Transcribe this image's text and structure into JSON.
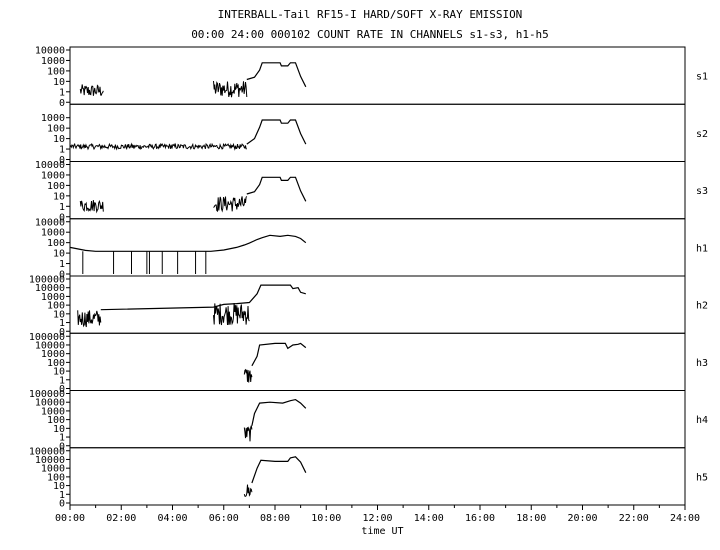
{
  "title": "INTERBALL-Tail RF15-I HARD/SOFT X-RAY EMISSION",
  "subtitle": "00:00 24:00 000102  COUNT RATE IN CHANNELS s1-s3, h1-h5",
  "chart_data": {
    "type": "line",
    "xlabel": "time UT",
    "x_unit": "hours UT",
    "xlim": [
      0,
      24
    ],
    "x_ticks": [
      "00:00",
      "02:00",
      "04:00",
      "06:00",
      "08:00",
      "10:00",
      "12:00",
      "14:00",
      "16:00",
      "18:00",
      "20:00",
      "22:00",
      "24:00"
    ],
    "grid": false,
    "y_scale": "log",
    "panels": [
      {
        "name": "s1",
        "ylim": [
          0.1,
          10000
        ],
        "y_ticks": [
          "10000",
          "1000",
          "100",
          "10",
          "1",
          "0"
        ],
        "noisy_segments": [
          [
            0.4,
            1.3,
            0.3,
            5
          ],
          [
            5.6,
            6.9,
            0.3,
            12
          ]
        ],
        "points": [
          [
            6.9,
            15
          ],
          [
            7.2,
            25
          ],
          [
            7.4,
            120
          ],
          [
            7.5,
            600
          ],
          [
            8.2,
            600
          ],
          [
            8.25,
            300
          ],
          [
            8.5,
            300
          ],
          [
            8.6,
            600
          ],
          [
            8.8,
            600
          ],
          [
            9.0,
            30
          ],
          [
            9.2,
            3
          ]
        ]
      },
      {
        "name": "s2",
        "ylim": [
          0.1,
          10000
        ],
        "y_ticks": [
          "1000",
          "100",
          "10",
          "1",
          "0"
        ],
        "noisy_segments": [
          [
            0,
            6.9,
            1,
            3
          ]
        ],
        "points": [
          [
            6.9,
            3
          ],
          [
            7.2,
            10
          ],
          [
            7.4,
            120
          ],
          [
            7.5,
            600
          ],
          [
            8.2,
            600
          ],
          [
            8.25,
            300
          ],
          [
            8.5,
            300
          ],
          [
            8.6,
            600
          ],
          [
            8.8,
            600
          ],
          [
            9.0,
            30
          ],
          [
            9.2,
            3
          ]
        ]
      },
      {
        "name": "s3",
        "ylim": [
          0.1,
          10000
        ],
        "y_ticks": [
          "10000",
          "1000",
          "100",
          "10",
          "1",
          "0"
        ],
        "noisy_segments": [
          [
            0.4,
            1.3,
            0.3,
            5
          ],
          [
            5.6,
            6.9,
            0.3,
            10
          ]
        ],
        "points": [
          [
            6.9,
            15
          ],
          [
            7.2,
            25
          ],
          [
            7.4,
            120
          ],
          [
            7.5,
            600
          ],
          [
            8.2,
            600
          ],
          [
            8.25,
            300
          ],
          [
            8.5,
            300
          ],
          [
            8.6,
            600
          ],
          [
            8.8,
            600
          ],
          [
            9.0,
            30
          ],
          [
            9.2,
            3
          ]
        ]
      },
      {
        "name": "h1",
        "ylim": [
          0.1,
          10000
        ],
        "y_ticks": [
          "10000",
          "1000",
          "100",
          "10",
          "1",
          "0"
        ],
        "drops": [
          0.5,
          1.7,
          2.4,
          3.0,
          3.1,
          3.6,
          4.2,
          4.9,
          5.3
        ],
        "points": [
          [
            0,
            35
          ],
          [
            0.3,
            25
          ],
          [
            0.6,
            18
          ],
          [
            1.0,
            15
          ],
          [
            3.0,
            15
          ],
          [
            5.5,
            15
          ],
          [
            6.0,
            20
          ],
          [
            6.5,
            35
          ],
          [
            6.8,
            60
          ],
          [
            7.0,
            90
          ],
          [
            7.3,
            200
          ],
          [
            7.5,
            300
          ],
          [
            7.8,
            500
          ],
          [
            8.2,
            400
          ],
          [
            8.5,
            500
          ],
          [
            8.8,
            400
          ],
          [
            9.0,
            250
          ],
          [
            9.2,
            100
          ]
        ]
      },
      {
        "name": "h2",
        "ylim": [
          0.1,
          100000
        ],
        "y_ticks": [
          "100000",
          "10000",
          "1000",
          "100",
          "10",
          "1",
          "0"
        ],
        "noisy_segments": [
          [
            0.3,
            1.2,
            0.3,
            30
          ],
          [
            5.6,
            7.0,
            0.5,
            200
          ]
        ],
        "points": [
          [
            1.2,
            30
          ],
          [
            5.6,
            60
          ],
          [
            6.0,
            120
          ],
          [
            6.5,
            150
          ],
          [
            7.0,
            200
          ],
          [
            7.3,
            2000
          ],
          [
            7.45,
            20000
          ],
          [
            8.6,
            20000
          ],
          [
            8.7,
            8000
          ],
          [
            8.9,
            10000
          ],
          [
            9.0,
            3000
          ],
          [
            9.2,
            2000
          ]
        ]
      },
      {
        "name": "h3",
        "ylim": [
          0.1,
          100000
        ],
        "y_ticks": [
          "100000",
          "10000",
          "1000",
          "100",
          "10",
          "1",
          "0"
        ],
        "noisy_segments": [
          [
            6.8,
            7.1,
            0.3,
            30
          ]
        ],
        "points": [
          [
            7.1,
            40
          ],
          [
            7.3,
            500
          ],
          [
            7.4,
            10000
          ],
          [
            8.0,
            15000
          ],
          [
            8.4,
            15000
          ],
          [
            8.5,
            4000
          ],
          [
            8.7,
            10000
          ],
          [
            8.9,
            12000
          ],
          [
            9.0,
            15000
          ],
          [
            9.2,
            5000
          ]
        ]
      },
      {
        "name": "h4",
        "ylim": [
          0.1,
          100000
        ],
        "y_ticks": [
          "100000",
          "10000",
          "1000",
          "100",
          "10",
          "1",
          "0"
        ],
        "noisy_segments": [
          [
            6.8,
            7.1,
            0.3,
            20
          ]
        ],
        "points": [
          [
            7.1,
            20
          ],
          [
            7.2,
            500
          ],
          [
            7.4,
            8000
          ],
          [
            7.8,
            10000
          ],
          [
            8.3,
            8000
          ],
          [
            8.6,
            15000
          ],
          [
            8.8,
            20000
          ],
          [
            9.0,
            8000
          ],
          [
            9.2,
            2000
          ]
        ]
      },
      {
        "name": "h5",
        "ylim": [
          0.1,
          100000
        ],
        "y_ticks": [
          "100000",
          "10000",
          "1000",
          "100",
          "10",
          "1",
          "0"
        ],
        "noisy_segments": [
          [
            6.8,
            7.1,
            0.3,
            20
          ]
        ],
        "points": [
          [
            7.1,
            20
          ],
          [
            7.3,
            1000
          ],
          [
            7.45,
            8000
          ],
          [
            8.0,
            6000
          ],
          [
            8.5,
            6000
          ],
          [
            8.6,
            15000
          ],
          [
            8.8,
            20000
          ],
          [
            9.0,
            5000
          ],
          [
            9.2,
            300
          ]
        ]
      }
    ]
  }
}
